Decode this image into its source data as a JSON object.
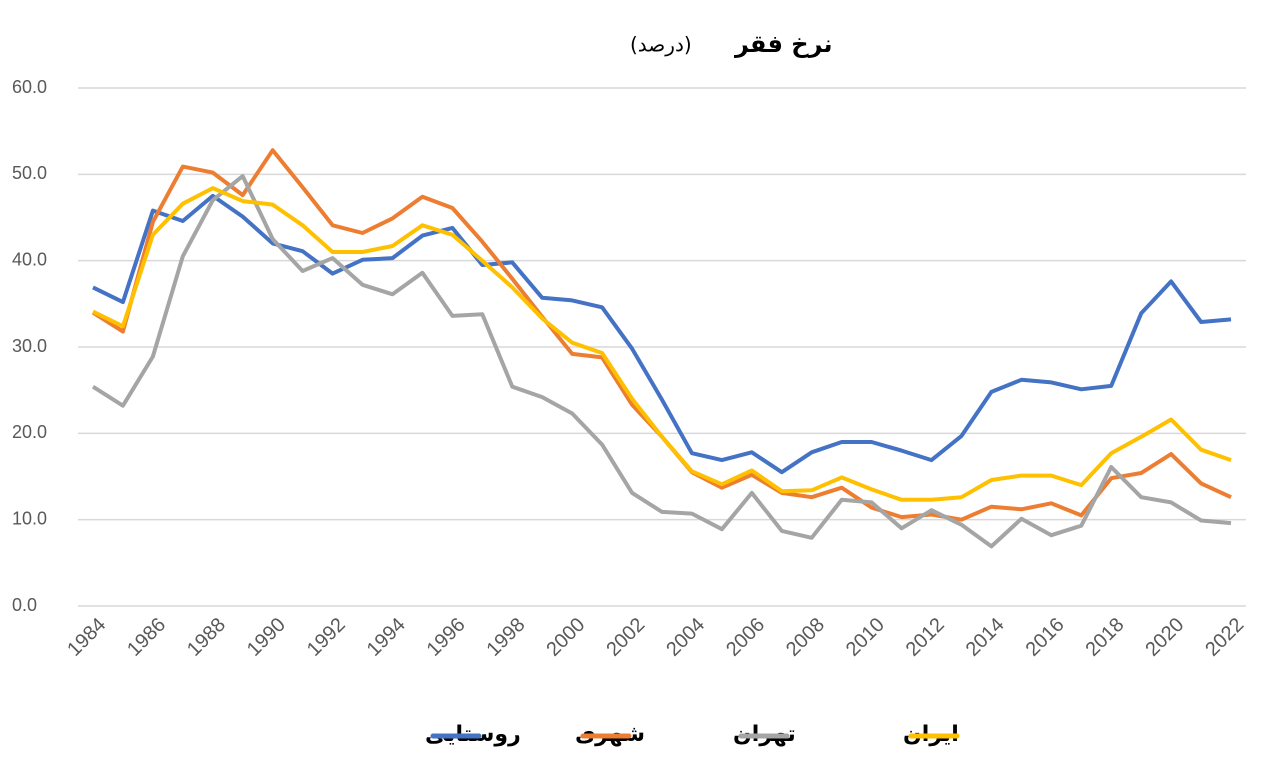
{
  "chart_data": {
    "type": "line",
    "title": "نرخ فقر",
    "subtitle": "(درصد)",
    "x": [
      1984,
      1985,
      1986,
      1987,
      1988,
      1989,
      1990,
      1991,
      1992,
      1993,
      1994,
      1995,
      1996,
      1997,
      1998,
      1999,
      2000,
      2001,
      2002,
      2003,
      2004,
      2005,
      2006,
      2007,
      2008,
      2009,
      2010,
      2011,
      2012,
      2013,
      2014,
      2015,
      2016,
      2017,
      2018,
      2019,
      2020,
      2021,
      2022
    ],
    "xlim": [
      1983.5,
      2022.5
    ],
    "xticks": [
      1984,
      1986,
      1988,
      1990,
      1992,
      1994,
      1996,
      1998,
      2000,
      2002,
      2004,
      2006,
      2008,
      2010,
      2012,
      2014,
      2016,
      2018,
      2020,
      2022
    ],
    "ylim": [
      0,
      60
    ],
    "yticks": [
      {
        "value": 0,
        "label": "0.0"
      },
      {
        "value": 10,
        "label": "10.0"
      },
      {
        "value": 20,
        "label": "20.0"
      },
      {
        "value": 30,
        "label": "30.0"
      },
      {
        "value": 40,
        "label": "40.0"
      },
      {
        "value": 50,
        "label": "50.0"
      },
      {
        "value": 60,
        "label": "60.0"
      }
    ],
    "grid": true,
    "legend": "bottom",
    "series": [
      {
        "name": "روستایی",
        "color": "#4472c4",
        "values": [
          36.9,
          35.2,
          45.8,
          44.6,
          47.5,
          45.1,
          42.0,
          41.1,
          38.5,
          40.1,
          40.3,
          42.9,
          43.8,
          39.5,
          39.8,
          35.7,
          35.4,
          34.6,
          29.8,
          23.9,
          17.7,
          16.9,
          17.8,
          15.5,
          17.8,
          19.0,
          19.0,
          18.0,
          16.9,
          19.7,
          24.8,
          26.2,
          25.9,
          25.1,
          25.5,
          33.9,
          37.6,
          32.9,
          33.2
        ]
      },
      {
        "name": "شهری",
        "color": "#ed7d31",
        "values": [
          34.0,
          31.8,
          44.5,
          50.9,
          50.2,
          47.6,
          52.8,
          48.5,
          44.1,
          43.2,
          44.9,
          47.4,
          46.1,
          42.2,
          37.9,
          33.5,
          29.2,
          28.8,
          23.3,
          19.6,
          15.5,
          13.7,
          15.2,
          13.1,
          12.6,
          13.7,
          11.4,
          10.3,
          10.6,
          10.0,
          11.5,
          11.2,
          11.9,
          10.5,
          14.8,
          15.4,
          17.6,
          14.2,
          12.6
        ]
      },
      {
        "name": "تهران",
        "color": "#a5a5a5",
        "values": [
          25.4,
          23.2,
          28.9,
          40.5,
          47.0,
          49.8,
          42.5,
          38.8,
          40.3,
          37.2,
          36.1,
          38.6,
          33.6,
          33.8,
          25.4,
          24.2,
          22.3,
          18.7,
          13.1,
          10.9,
          10.7,
          8.9,
          13.1,
          8.7,
          7.9,
          12.3,
          12.0,
          9.0,
          11.1,
          9.4,
          6.9,
          10.1,
          8.2,
          9.3,
          16.1,
          12.6,
          12.0,
          9.9,
          9.6
        ]
      },
      {
        "name": "ایران",
        "color": "#ffc000",
        "values": [
          34.1,
          32.4,
          43.0,
          46.6,
          48.4,
          46.9,
          46.5,
          44.1,
          41.0,
          41.0,
          41.7,
          44.1,
          43.0,
          40.0,
          36.9,
          33.3,
          30.5,
          29.3,
          24.0,
          19.6,
          15.6,
          14.1,
          15.7,
          13.3,
          13.4,
          14.9,
          13.5,
          12.3,
          12.3,
          12.6,
          14.6,
          15.1,
          15.1,
          14.0,
          17.7,
          19.6,
          21.6,
          18.1,
          16.9
        ]
      }
    ]
  }
}
